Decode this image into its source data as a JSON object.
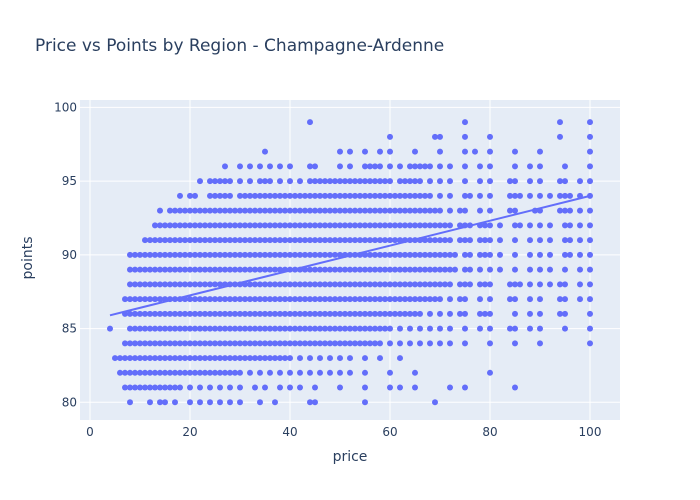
{
  "chart_data": {
    "type": "scatter",
    "title": "Price vs Points by Region - Champagne-Ardenne",
    "xlabel": "price",
    "ylabel": "points",
    "xlim": [
      -2,
      106
    ],
    "ylim": [
      78.8,
      100.5
    ],
    "xticks": [
      0,
      20,
      40,
      60,
      80,
      100
    ],
    "yticks": [
      80,
      85,
      90,
      95,
      100
    ],
    "grid": true,
    "legend": "none",
    "colors": {
      "marker": "#636efa",
      "trend": "#636efa",
      "plot_bg": "#e5ecf6",
      "grid": "#ffffff",
      "text": "#2a3f5f"
    },
    "trendline": {
      "x": [
        4,
        100
      ],
      "y": [
        85.9,
        94.0
      ]
    },
    "points_by_points": [
      {
        "y": 80,
        "x": [
          8,
          12,
          14,
          15,
          17,
          20,
          22,
          24,
          26,
          28,
          30,
          34,
          37,
          44,
          45,
          55,
          69
        ]
      },
      {
        "y": 81,
        "x": [
          7,
          8,
          9,
          10,
          11,
          12,
          13,
          14,
          15,
          16,
          17,
          18,
          20,
          22,
          24,
          26,
          28,
          30,
          33,
          35,
          38,
          40,
          42,
          45,
          50,
          55,
          60,
          62,
          65,
          72,
          75,
          85
        ]
      },
      {
        "y": 82,
        "x": [
          6,
          7,
          8,
          9,
          10,
          11,
          12,
          13,
          14,
          15,
          16,
          17,
          18,
          19,
          20,
          21,
          22,
          23,
          24,
          25,
          26,
          27,
          28,
          29,
          30,
          32,
          34,
          36,
          38,
          40,
          42,
          44,
          46,
          48,
          50,
          52,
          55,
          60,
          65,
          80
        ]
      },
      {
        "y": 83,
        "x": [
          5,
          6,
          7,
          8,
          9,
          10,
          11,
          12,
          13,
          14,
          15,
          16,
          17,
          18,
          19,
          20,
          21,
          22,
          23,
          24,
          25,
          26,
          27,
          28,
          29,
          30,
          31,
          32,
          33,
          34,
          35,
          36,
          37,
          38,
          39,
          40,
          42,
          44,
          46,
          48,
          50,
          52,
          55,
          58,
          62
        ]
      },
      {
        "y": 84,
        "x": [
          7,
          8,
          9,
          10,
          11,
          12,
          13,
          14,
          15,
          16,
          17,
          18,
          19,
          20,
          21,
          22,
          23,
          24,
          25,
          26,
          27,
          28,
          29,
          30,
          31,
          32,
          33,
          34,
          35,
          36,
          37,
          38,
          39,
          40,
          41,
          42,
          43,
          44,
          45,
          46,
          47,
          48,
          49,
          50,
          51,
          52,
          53,
          54,
          55,
          56,
          57,
          58,
          60,
          62,
          64,
          66,
          68,
          70,
          72,
          75,
          80,
          85,
          90,
          100
        ]
      },
      {
        "y": 85,
        "x": [
          4,
          8,
          9,
          10,
          11,
          12,
          13,
          14,
          15,
          16,
          17,
          18,
          19,
          20,
          21,
          22,
          23,
          24,
          25,
          26,
          27,
          28,
          29,
          30,
          31,
          32,
          33,
          34,
          35,
          36,
          37,
          38,
          39,
          40,
          41,
          42,
          43,
          44,
          45,
          46,
          47,
          48,
          49,
          50,
          51,
          52,
          53,
          54,
          55,
          56,
          57,
          58,
          59,
          60,
          62,
          64,
          66,
          68,
          70,
          72,
          75,
          78,
          80,
          84,
          85,
          88,
          90,
          95,
          100
        ]
      },
      {
        "y": 86,
        "x": [
          7,
          8,
          9,
          10,
          11,
          12,
          13,
          14,
          15,
          16,
          17,
          18,
          19,
          20,
          21,
          22,
          23,
          24,
          25,
          26,
          27,
          28,
          29,
          30,
          31,
          32,
          33,
          34,
          35,
          36,
          37,
          38,
          39,
          40,
          41,
          42,
          43,
          44,
          45,
          46,
          47,
          48,
          49,
          50,
          51,
          52,
          53,
          54,
          55,
          56,
          57,
          58,
          59,
          60,
          61,
          62,
          63,
          64,
          65,
          66,
          68,
          70,
          72,
          74,
          75,
          78,
          79,
          80,
          85,
          88,
          90,
          94,
          95,
          100
        ]
      },
      {
        "y": 87,
        "x": [
          7,
          8,
          9,
          10,
          11,
          12,
          13,
          14,
          15,
          16,
          17,
          18,
          19,
          20,
          21,
          22,
          23,
          24,
          25,
          26,
          27,
          28,
          29,
          30,
          31,
          32,
          33,
          34,
          35,
          36,
          37,
          38,
          39,
          40,
          41,
          42,
          43,
          44,
          45,
          46,
          47,
          48,
          49,
          50,
          51,
          52,
          53,
          54,
          55,
          56,
          57,
          58,
          59,
          60,
          61,
          62,
          63,
          64,
          65,
          66,
          67,
          68,
          69,
          70,
          72,
          74,
          75,
          78,
          80,
          84,
          85,
          88,
          90,
          94,
          95,
          98,
          100
        ]
      },
      {
        "y": 88,
        "x": [
          8,
          9,
          10,
          11,
          12,
          13,
          14,
          15,
          16,
          17,
          18,
          19,
          20,
          21,
          22,
          23,
          24,
          25,
          26,
          27,
          28,
          29,
          30,
          31,
          32,
          33,
          34,
          35,
          36,
          37,
          38,
          39,
          40,
          41,
          42,
          43,
          44,
          45,
          46,
          47,
          48,
          49,
          50,
          51,
          52,
          53,
          54,
          55,
          56,
          57,
          58,
          59,
          60,
          61,
          62,
          63,
          64,
          65,
          66,
          67,
          68,
          69,
          70,
          71,
          72,
          74,
          75,
          76,
          78,
          79,
          80,
          84,
          85,
          86,
          88,
          90,
          92,
          94,
          95,
          98,
          100
        ]
      },
      {
        "y": 89,
        "x": [
          8,
          9,
          10,
          11,
          12,
          13,
          14,
          15,
          16,
          17,
          18,
          19,
          20,
          21,
          22,
          23,
          24,
          25,
          26,
          27,
          28,
          29,
          30,
          31,
          32,
          33,
          34,
          35,
          36,
          37,
          38,
          39,
          40,
          41,
          42,
          43,
          44,
          45,
          46,
          47,
          48,
          49,
          50,
          51,
          52,
          53,
          54,
          55,
          56,
          57,
          58,
          59,
          60,
          61,
          62,
          63,
          64,
          65,
          66,
          67,
          68,
          69,
          70,
          71,
          72,
          73,
          75,
          76,
          78,
          80,
          82,
          85,
          88,
          90,
          92,
          95,
          98,
          100
        ]
      },
      {
        "y": 90,
        "x": [
          8,
          9,
          10,
          11,
          12,
          13,
          14,
          15,
          16,
          17,
          18,
          19,
          20,
          21,
          22,
          23,
          24,
          25,
          26,
          27,
          28,
          29,
          30,
          31,
          32,
          33,
          34,
          35,
          36,
          37,
          38,
          39,
          40,
          41,
          42,
          43,
          44,
          45,
          46,
          47,
          48,
          49,
          50,
          51,
          52,
          53,
          54,
          55,
          56,
          57,
          58,
          59,
          60,
          61,
          62,
          63,
          64,
          65,
          66,
          67,
          68,
          69,
          70,
          71,
          72,
          73,
          75,
          76,
          78,
          79,
          80,
          82,
          85,
          88,
          90,
          92,
          95,
          96,
          98,
          100
        ]
      },
      {
        "y": 91,
        "x": [
          11,
          12,
          13,
          14,
          15,
          16,
          17,
          18,
          19,
          20,
          21,
          22,
          23,
          24,
          25,
          26,
          27,
          28,
          29,
          30,
          31,
          32,
          33,
          34,
          35,
          36,
          37,
          38,
          39,
          40,
          41,
          42,
          43,
          44,
          45,
          46,
          47,
          48,
          49,
          50,
          51,
          52,
          53,
          54,
          55,
          56,
          57,
          58,
          59,
          60,
          61,
          62,
          63,
          64,
          65,
          66,
          67,
          68,
          69,
          70,
          71,
          72,
          74,
          75,
          76,
          78,
          79,
          80,
          82,
          85,
          88,
          90,
          92,
          95,
          96,
          98,
          100
        ]
      },
      {
        "y": 92,
        "x": [
          13,
          14,
          15,
          16,
          17,
          18,
          19,
          20,
          21,
          22,
          23,
          24,
          25,
          26,
          27,
          28,
          29,
          30,
          31,
          32,
          33,
          34,
          35,
          36,
          37,
          38,
          39,
          40,
          41,
          42,
          43,
          44,
          45,
          46,
          47,
          48,
          49,
          50,
          51,
          52,
          53,
          54,
          55,
          56,
          57,
          58,
          59,
          60,
          61,
          62,
          63,
          64,
          65,
          66,
          67,
          68,
          69,
          70,
          71,
          72,
          74,
          75,
          76,
          78,
          79,
          80,
          82,
          85,
          86,
          88,
          90,
          92,
          95,
          96,
          98,
          100
        ]
      },
      {
        "y": 93,
        "x": [
          14,
          16,
          17,
          18,
          19,
          20,
          21,
          22,
          23,
          24,
          25,
          26,
          27,
          28,
          29,
          30,
          31,
          32,
          33,
          34,
          35,
          36,
          37,
          38,
          39,
          40,
          41,
          42,
          43,
          44,
          45,
          46,
          47,
          48,
          49,
          50,
          51,
          52,
          53,
          54,
          55,
          56,
          57,
          58,
          59,
          60,
          61,
          62,
          63,
          64,
          65,
          66,
          67,
          68,
          69,
          70,
          72,
          74,
          75,
          78,
          80,
          84,
          85,
          89,
          90,
          94,
          95,
          96,
          98,
          100
        ]
      },
      {
        "y": 94,
        "x": [
          18,
          20,
          21,
          24,
          25,
          26,
          27,
          28,
          30,
          31,
          32,
          33,
          34,
          35,
          36,
          37,
          38,
          39,
          40,
          41,
          42,
          43,
          44,
          45,
          46,
          47,
          48,
          49,
          50,
          51,
          52,
          53,
          54,
          55,
          56,
          57,
          58,
          59,
          60,
          61,
          62,
          63,
          64,
          65,
          66,
          67,
          68,
          70,
          72,
          75,
          76,
          78,
          80,
          84,
          85,
          86,
          88,
          90,
          92,
          94,
          95,
          96,
          98,
          100
        ]
      },
      {
        "y": 95,
        "x": [
          22,
          24,
          25,
          26,
          27,
          28,
          30,
          32,
          34,
          35,
          36,
          38,
          40,
          42,
          44,
          45,
          46,
          47,
          48,
          49,
          50,
          51,
          52,
          53,
          54,
          55,
          56,
          57,
          58,
          59,
          60,
          62,
          63,
          64,
          65,
          66,
          68,
          70,
          72,
          75,
          78,
          80,
          84,
          85,
          88,
          90,
          94,
          95,
          98,
          100
        ]
      },
      {
        "y": 96,
        "x": [
          27,
          30,
          32,
          34,
          36,
          38,
          40,
          44,
          45,
          50,
          52,
          55,
          56,
          57,
          58,
          60,
          62,
          64,
          65,
          66,
          67,
          68,
          70,
          72,
          75,
          78,
          80,
          85,
          88,
          90,
          95,
          100
        ]
      },
      {
        "y": 97,
        "x": [
          35,
          50,
          52,
          55,
          58,
          60,
          65,
          70,
          75,
          77,
          80,
          85,
          90,
          100
        ]
      },
      {
        "y": 98,
        "x": [
          60,
          69,
          70,
          75,
          80,
          94,
          100
        ]
      },
      {
        "y": 99,
        "x": [
          44,
          75,
          94,
          100
        ]
      }
    ]
  }
}
